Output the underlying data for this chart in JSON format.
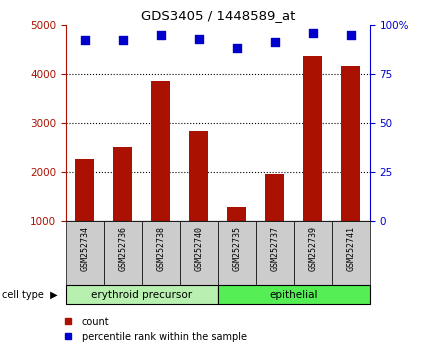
{
  "title": "GDS3405 / 1448589_at",
  "samples": [
    "GSM252734",
    "GSM252736",
    "GSM252738",
    "GSM252740",
    "GSM252735",
    "GSM252737",
    "GSM252739",
    "GSM252741"
  ],
  "counts": [
    2260,
    2520,
    3860,
    2840,
    1280,
    1960,
    4360,
    4160
  ],
  "percentiles": [
    92,
    92,
    95,
    93,
    88,
    91,
    96,
    95
  ],
  "cell_type_labels": [
    "erythroid precursor",
    "epithelial"
  ],
  "erythroid_color": "#b8f0b0",
  "epithelial_color": "#55ee55",
  "bar_color": "#aa1100",
  "dot_color": "#0000cc",
  "ylim_left": [
    1000,
    5000
  ],
  "yticks_left": [
    1000,
    2000,
    3000,
    4000,
    5000
  ],
  "yticks_right": [
    0,
    25,
    50,
    75,
    100
  ],
  "xlabel_area_color": "#cccccc",
  "legend_count_label": "count",
  "legend_pct_label": "percentile rank within the sample",
  "bar_width": 0.5,
  "dot_size": 28,
  "erythroid_count": 4,
  "epithelial_count": 4
}
